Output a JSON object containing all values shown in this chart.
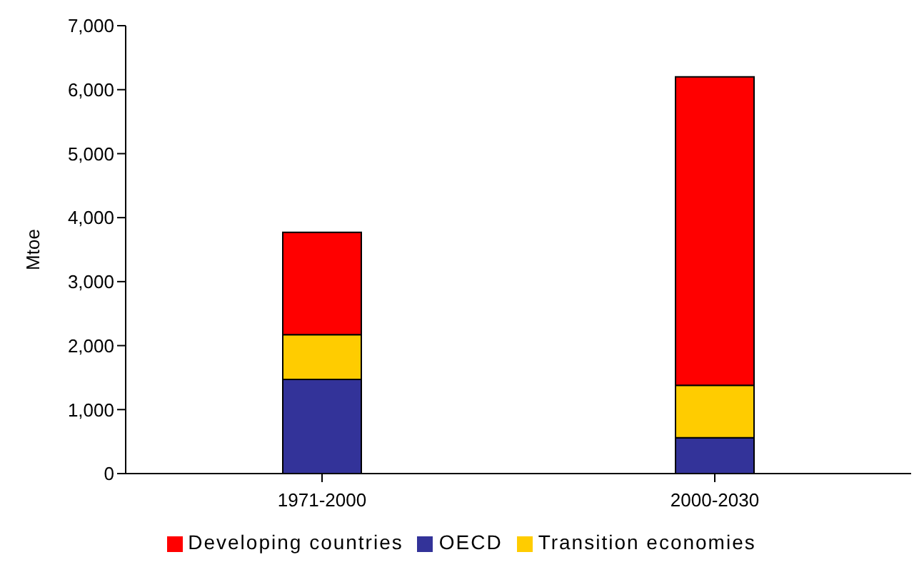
{
  "chart_data": {
    "type": "bar",
    "stacked": true,
    "ylabel": "Mtoe",
    "categories": [
      "1971-2000",
      "2000-2030"
    ],
    "series": [
      {
        "name": "OECD",
        "color": "#333399",
        "values": [
          1470,
          560
        ]
      },
      {
        "name": "Transition economies",
        "color": "#ffcc00",
        "values": [
          700,
          820
        ]
      },
      {
        "name": "Developing countries",
        "color": "#ff0000",
        "values": [
          1600,
          4820
        ]
      }
    ],
    "ylim": [
      0,
      7000
    ],
    "yticks": [
      {
        "value": 0,
        "label": "0"
      },
      {
        "value": 1000,
        "label": "1,000"
      },
      {
        "value": 2000,
        "label": "2,000"
      },
      {
        "value": 3000,
        "label": "3,000"
      },
      {
        "value": 4000,
        "label": "4,000"
      },
      {
        "value": 5000,
        "label": "5,000"
      },
      {
        "value": 6000,
        "label": "6,000"
      },
      {
        "value": 7000,
        "label": "7,000"
      }
    ],
    "grid": false,
    "legend": "bottom"
  }
}
